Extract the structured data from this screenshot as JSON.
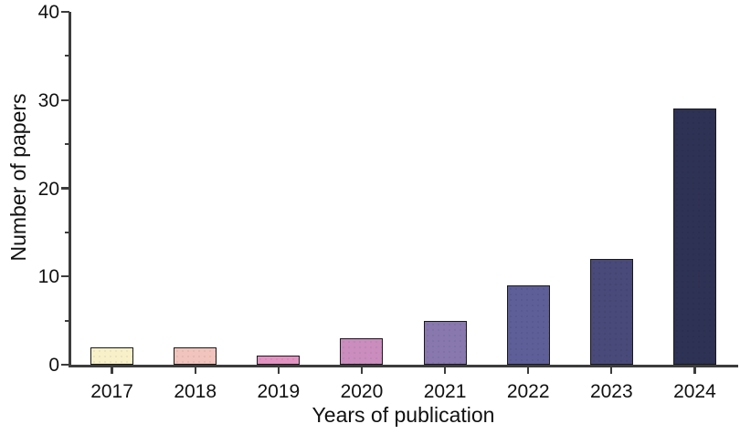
{
  "figure": {
    "background": "#ffffff"
  },
  "chart_data": {
    "type": "bar",
    "title": "",
    "xlabel": "Years of publication",
    "ylabel": "Number of papers",
    "categories": [
      "2017",
      "2018",
      "2019",
      "2020",
      "2021",
      "2022",
      "2023",
      "2024"
    ],
    "values": [
      2,
      2,
      1,
      3,
      5,
      9,
      12,
      29
    ],
    "bar_colors": [
      "#F8F0C8",
      "#F1C4BD",
      "#E293C2",
      "#CA8DBE",
      "#8878AE",
      "#5E5E99",
      "#49497A",
      "#2E3254"
    ],
    "bar_edge_color": "#1a1a1a",
    "axis_color": "#3c3c3c",
    "tick_color": "#3c3c3c",
    "ylim": [
      0,
      40
    ],
    "yticks_major": [
      0,
      10,
      20,
      30,
      40
    ],
    "yticks_minor": [
      5,
      15,
      25,
      35
    ],
    "grid": "off",
    "legend": "none"
  }
}
